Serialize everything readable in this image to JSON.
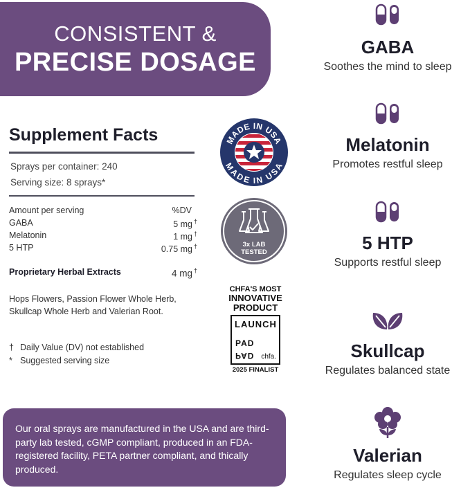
{
  "banner": {
    "line1": "CONSISTENT &",
    "line2": "PRECISE DOSAGE"
  },
  "facts": {
    "title": "Supplement Facts",
    "sprays_per_container": "Sprays per container: 240",
    "serving_size": "Serving size: 8 sprays*",
    "amount_header": "Amount per serving",
    "dv_header": "%DV",
    "rows": [
      {
        "name": "GABA",
        "value": "5 mg"
      },
      {
        "name": "Melatonin",
        "value": "1 mg"
      },
      {
        "name": "5 HTP",
        "value": "0.75 mg"
      }
    ],
    "dagger": "†",
    "proprietary": {
      "name": "Proprietary Herbal Extracts",
      "value": "4 mg"
    },
    "herbs_line1": "Hops Flowers, Passion Flower Whole Herb,",
    "herbs_line2": "Skullcap Whole Herb and Valerian Root.",
    "footnote1_sym": "†",
    "footnote1": "Daily Value (DV) not established",
    "footnote2_sym": "*",
    "footnote2": "Suggested serving size"
  },
  "badges": {
    "usa_text_top": "MADE IN USA",
    "usa_text_bottom": "MADE IN USA",
    "lab_line1": "3x LAB",
    "lab_line2": "TESTED",
    "chfa_line1": "CHFA'S MOST",
    "chfa_line2": "INNOVATIVE",
    "chfa_line3": "PRODUCT",
    "launch": "LAUNCH",
    "pad_top": "PAD",
    "pad_bottom": "PAD",
    "chfa_mark": "chfa.",
    "finalist": "2025 FINALIST"
  },
  "ingredients": [
    {
      "name": "GABA",
      "desc": "Soothes the mind to sleep",
      "icon": "capsule-icon"
    },
    {
      "name": "Melatonin",
      "desc": "Promotes restful sleep",
      "icon": "capsule-icon"
    },
    {
      "name": "5 HTP",
      "desc": "Supports restful sleep",
      "icon": "capsule-icon"
    },
    {
      "name": "Skullcap",
      "desc": "Regulates balanced state",
      "icon": "leaves-icon"
    },
    {
      "name": "Valerian",
      "desc": "Regulates sleep cycle",
      "icon": "flower-icon"
    }
  ],
  "note": {
    "text": "Our oral sprays are manufactured in the USA and are third-party lab tested, cGMP compliant, produced in an FDA-registered facility, PETA partner compliant, and thically produced."
  },
  "colors": {
    "purple": "#6b4c7f",
    "icon_purple": "#5d3f73",
    "navy": "#25366b",
    "red": "#c8243a"
  }
}
